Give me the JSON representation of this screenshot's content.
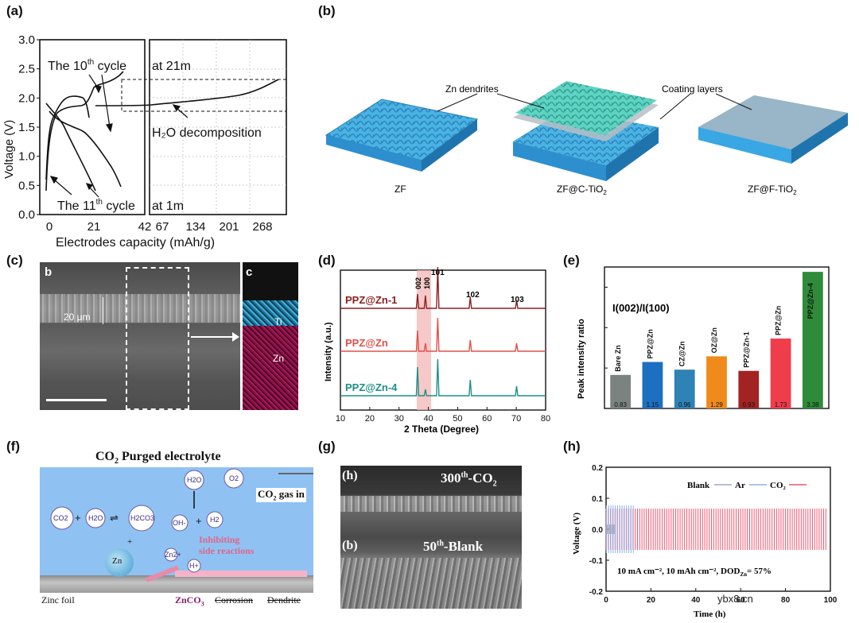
{
  "labels": {
    "a": "(a)",
    "b": "(b)",
    "c": "(c)",
    "d": "(d)",
    "e": "(e)",
    "f": "(f)",
    "g": "(g)",
    "h": "(h)"
  },
  "panel_a": {
    "ylabel": "Voltage (V)",
    "xlabel": "Electrodes capacity (mAh/g)",
    "yticks": [
      "0.0",
      "0.5",
      "1.0",
      "1.5",
      "2.0",
      "2.5",
      "3.0"
    ],
    "xticks_left": [
      "0",
      "21",
      "42"
    ],
    "xticks_right": [
      "67",
      "134",
      "201",
      "268"
    ],
    "ann_10th_pre": "The 10",
    "ann_10th_sup": "th",
    "ann_10th_post": " cycle",
    "ann_21m": "at 21m",
    "ann_h2o": "H₂O decomposition",
    "ann_11th_pre": "The 11",
    "ann_11th_sup": "th",
    "ann_11th_post": " cycle",
    "ann_1m": "at 1m"
  },
  "panel_b": {
    "zn_dendrites": "Zn dendrites",
    "coating_layers": "Coating layers",
    "zf": "ZF",
    "zf_c": "ZF@C-TiO",
    "zf_c_sub": "2",
    "zf_f": "ZF@F-TiO",
    "zf_f_sub": "2"
  },
  "panel_c": {
    "b": "b",
    "c": "c",
    "scale": "20 μm",
    "ti": "Ti",
    "zn": "Zn"
  },
  "panel_d": {
    "ylabel": "Intensity (a.u.)",
    "xlabel": "2 Theta (Degree)",
    "xticks": [
      "10",
      "20",
      "30",
      "40",
      "50",
      "60",
      "70",
      "80"
    ],
    "peaks": [
      "002",
      "100",
      "101",
      "102",
      "103"
    ],
    "series": [
      {
        "name": "PPZ@Zn-1",
        "color": "#8b2020"
      },
      {
        "name": "PPZ@Zn",
        "color": "#e0504a"
      },
      {
        "name": "PPZ@Zn-4",
        "color": "#1f8f86"
      }
    ]
  },
  "chart_data": {
    "type": "bar",
    "title": "I(002)/I(100)",
    "ylabel": "Peak intensity ratio",
    "categories": [
      "Bare Zn",
      "PPZ@Zn",
      "CZ@Zn",
      "OZ@Zn",
      "PPZ@Zn-1",
      "PPZ@Zn",
      "PPZ@Zn-4"
    ],
    "values": [
      0.83,
      1.15,
      0.96,
      1.29,
      0.93,
      1.73,
      3.38
    ],
    "value_labels": [
      "0.83",
      "1.15",
      "0.96",
      "1.29",
      "0.93",
      "1.73",
      "3.38"
    ],
    "colors": [
      "#7a8380",
      "#1d6fc1",
      "#2e82b6",
      "#f08a1a",
      "#a32323",
      "#ef3d4c",
      "#2e8b3a"
    ],
    "ylim": [
      0,
      3.5
    ]
  },
  "panel_f": {
    "title_pre": "CO",
    "title_sub": "2",
    "title_post": " Purged electrolyte",
    "gas_in_pre": "CO",
    "gas_in_sub": "2",
    "gas_in_post": " gas in",
    "co2": "CO2",
    "h2o": "H2O",
    "h2co3": "H2CO3",
    "oh": "OH-",
    "h2": "H2",
    "hplus": "H+",
    "zn2": "Zn2+",
    "zn": "Zn",
    "o2": "O2",
    "inhibit1": "Inhibiting",
    "inhibit2": "side reactions",
    "zinc_foil": "Zinc foil",
    "znco3_pre": "ZnCO",
    "znco3_sub": "3",
    "corrosion": "Corrosion",
    "dendrite": "Dendrite"
  },
  "panel_g": {
    "top_label_pre": "(h)",
    "top_title_pre": "300",
    "top_title_sup": "th",
    "top_title_post": "-CO",
    "top_title_sub": "2",
    "bot_label": "(b)",
    "bot_title_pre": "50",
    "bot_title_sup": "th",
    "bot_title_post": "-Blank"
  },
  "panel_h": {
    "ylabel": "Voltage (V)",
    "xlabel": "Time (h)",
    "yticks": [
      "0.2",
      "0.1",
      "0.0",
      "-0.1",
      "-0.2"
    ],
    "xticks": [
      "0",
      "20",
      "40",
      "60",
      "80",
      "100"
    ],
    "legend": [
      {
        "name": "Blank",
        "color": "#9aa8c8"
      },
      {
        "name": "Ar",
        "color": "#8fb4ec"
      },
      {
        "name": "CO₂",
        "color": "#ef5770"
      }
    ],
    "condition": "10 mA cm⁻², 10 mAh cm⁻², DOD",
    "condition_sub": "Zn",
    "condition_post": "= 57%"
  },
  "watermark": "ybx8.cn"
}
